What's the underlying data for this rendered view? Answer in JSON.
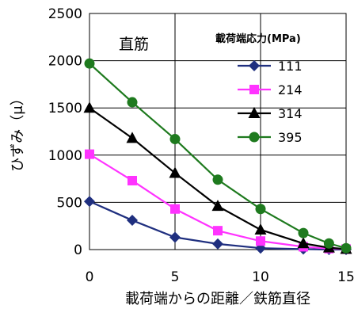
{
  "chart_data": {
    "type": "line",
    "annotation": "直筋",
    "xlabel": "載荷端からの距離／鉄筋直径",
    "ylabel": "ひずみ（μ）",
    "legend_title": "載荷端応力(MPa)",
    "legend_position": "top-right",
    "xlim": [
      0,
      15
    ],
    "ylim": [
      0,
      2500
    ],
    "x_ticks": [
      0,
      5,
      10,
      15
    ],
    "y_ticks": [
      0,
      500,
      1000,
      1500,
      2000,
      2500
    ],
    "grid": true,
    "x": [
      0,
      2.5,
      5,
      7.5,
      10,
      12.5,
      14,
      15
    ],
    "series": [
      {
        "name": "111",
        "color": "#1f2f7f",
        "marker": "diamond",
        "values": [
          510,
          310,
          130,
          60,
          15,
          5,
          0,
          0
        ]
      },
      {
        "name": "214",
        "color": "#ff33ff",
        "marker": "square",
        "values": [
          1010,
          730,
          430,
          200,
          90,
          30,
          10,
          5
        ]
      },
      {
        "name": "314",
        "color": "#000000",
        "marker": "triangle",
        "values": [
          1500,
          1180,
          810,
          460,
          210,
          65,
          20,
          5
        ]
      },
      {
        "name": "395",
        "color": "#1e7a1e",
        "marker": "circle",
        "values": [
          1970,
          1560,
          1170,
          740,
          430,
          175,
          65,
          15
        ]
      }
    ]
  }
}
